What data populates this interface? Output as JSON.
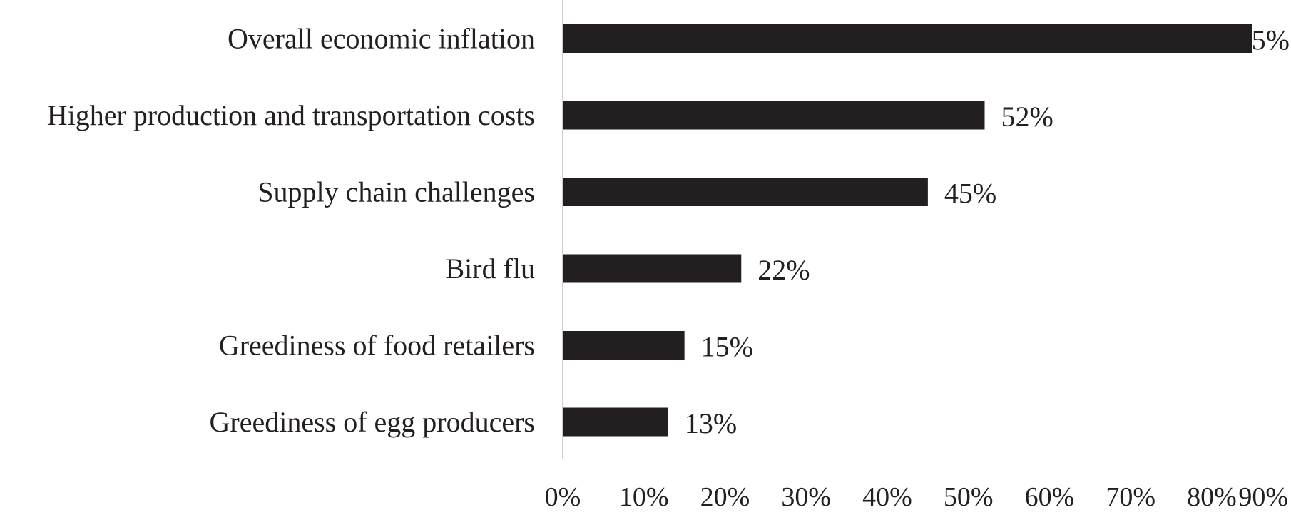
{
  "chart_data": {
    "type": "bar",
    "orientation": "horizontal",
    "categories": [
      "Overall economic inflation",
      "Higher production and transportation costs",
      "Supply chain challenges",
      "Bird flu",
      "Greediness of food retailers",
      "Greediness of egg producers"
    ],
    "values": [
      85,
      52,
      45,
      22,
      15,
      13
    ],
    "data_labels": [
      "85%",
      "52%",
      "45%",
      "22%",
      "15%",
      "13%"
    ],
    "xlim": [
      0,
      90
    ],
    "x_ticks": [
      0,
      10,
      20,
      30,
      40,
      50,
      60,
      70,
      80,
      90
    ],
    "x_tick_labels": [
      "0%",
      "10%",
      "20%",
      "30%",
      "40%",
      "50%",
      "60%",
      "70%",
      "80%",
      "90%"
    ],
    "grid": false,
    "legend": "none",
    "title": "",
    "xlabel": "",
    "ylabel": "",
    "colors": {
      "bar": "#231f20",
      "axis": "#d0d0d0",
      "text": "#231f20"
    }
  }
}
